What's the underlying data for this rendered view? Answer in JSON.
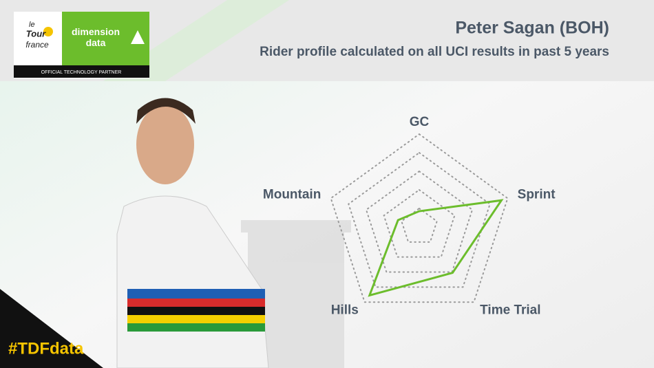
{
  "logo": {
    "tour": [
      "le",
      "Tour",
      "france"
    ],
    "brand": "dimension data",
    "partner": "OFFICIAL TECHNOLOGY PARTNER"
  },
  "hashtag": "#TDFdata",
  "chart_data": {
    "type": "radar",
    "title": "Peter Sagan (BOH)",
    "subtitle": "Rider profile calculated on all UCI results in past 5 years",
    "categories": [
      "GC",
      "Sprint",
      "Time Trial",
      "Hills",
      "Mountain"
    ],
    "values": [
      17,
      93,
      61,
      91,
      24
    ],
    "color": "#6cbd2c",
    "ylim": [
      0,
      100
    ],
    "yticks": [
      20,
      40,
      60,
      80,
      100
    ],
    "grid": true
  }
}
